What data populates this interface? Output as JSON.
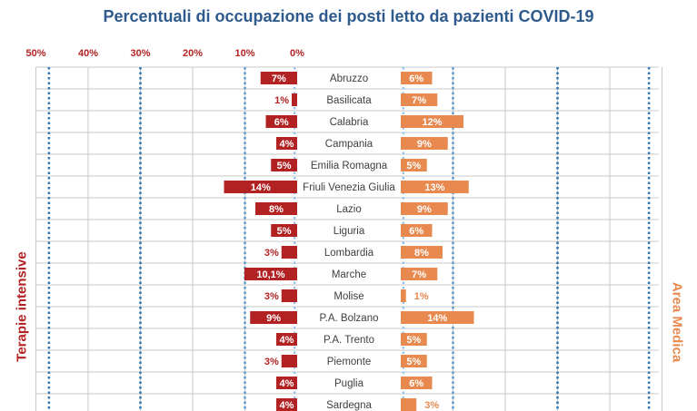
{
  "chart_data": {
    "type": "bar",
    "title": "Percentuali di occupazione dei posti letto da pazienti COVID-19",
    "left_axis_label": "Terapie intensive",
    "right_axis_label": "Area Medica",
    "left_ticks": [
      "50%",
      "40%",
      "30%",
      "20%",
      "10%",
      "0%"
    ],
    "xlim": [
      0,
      50
    ],
    "threshold_lines": [
      10,
      30
    ],
    "categories": [
      "Abruzzo",
      "Basilicata",
      "Calabria",
      "Campania",
      "Emilia Romagna",
      "Friuli Venezia Giulia",
      "Lazio",
      "Liguria",
      "Lombardia",
      "Marche",
      "Molise",
      "P.A. Bolzano",
      "P.A. Trento",
      "Piemonte",
      "Puglia",
      "Sardegna"
    ],
    "series": [
      {
        "name": "Terapie intensive",
        "values": [
          7,
          1,
          6,
          4,
          5,
          14,
          8,
          5,
          3,
          10.1,
          3,
          9,
          4,
          3,
          4,
          4
        ],
        "labels": [
          "7%",
          "1%",
          "6%",
          "4%",
          "5%",
          "14%",
          "8%",
          "5%",
          "3%",
          "10,1%",
          "3%",
          "9%",
          "4%",
          "3%",
          "4%",
          "4%"
        ]
      },
      {
        "name": "Area Medica",
        "values": [
          6,
          7,
          12,
          9,
          5,
          13,
          9,
          6,
          8,
          7,
          1,
          14,
          5,
          5,
          6,
          3
        ],
        "labels": [
          "6%",
          "7%",
          "12%",
          "9%",
          "5%",
          "13%",
          "9%",
          "6%",
          "8%",
          "7%",
          "1%",
          "14%",
          "5%",
          "5%",
          "6%",
          "3%"
        ]
      }
    ]
  },
  "colors": {
    "title": "#2E5A8C",
    "left_bar": "#B22222",
    "right_bar": "#E8894F",
    "left_text": "#B22222",
    "right_text": "#E8894F",
    "grid": "#C8C8C8",
    "dotted_light": "#9CC3E6",
    "dotted_mid": "#5B9BD5",
    "dotted_dark": "#2E75B6",
    "category_text": "#404040"
  }
}
